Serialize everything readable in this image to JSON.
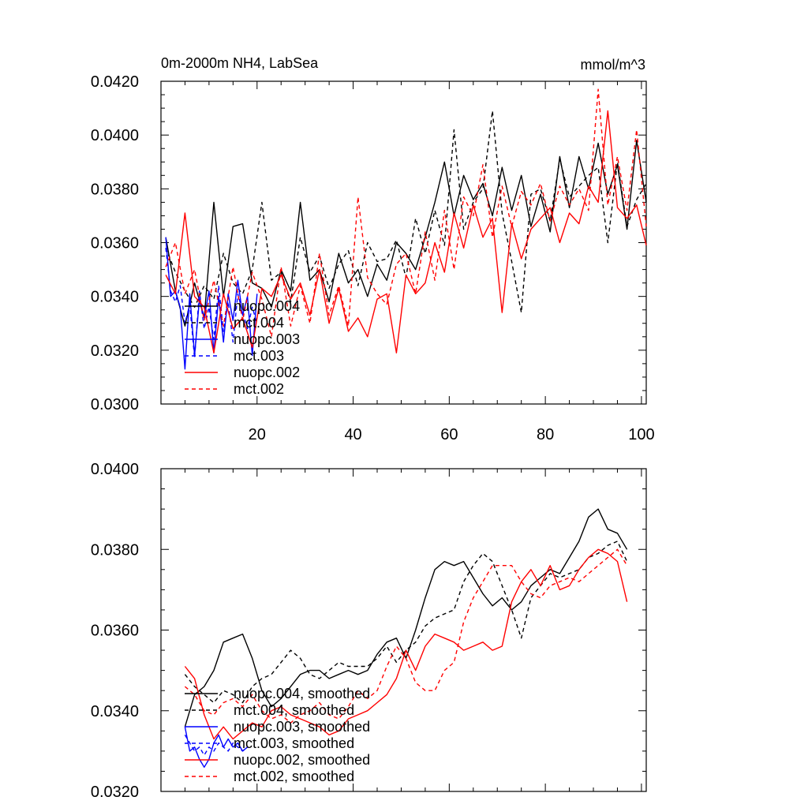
{
  "chart_data": [
    {
      "type": "line",
      "title": "0m-2000m NH4, LabSea",
      "units": "mmol/m^3",
      "xlabel": "",
      "ylabel": "",
      "xlim": [
        0,
        101
      ],
      "ylim": [
        0.03,
        0.042
      ],
      "x_ticks": [
        "20",
        "40",
        "60",
        "80",
        "100"
      ],
      "y_ticks": [
        "0.0300",
        "0.0320",
        "0.0340",
        "0.0360",
        "0.0380",
        "0.0400",
        "0.0420"
      ],
      "legend_position": "lower-left",
      "series": [
        {
          "name": "nuopc.004",
          "color": "#000000",
          "style": "solid",
          "x": [
            1,
            3,
            5,
            7,
            9,
            11,
            13,
            15,
            17,
            19,
            21,
            23,
            25,
            27,
            29,
            31,
            33,
            35,
            37,
            39,
            41,
            43,
            45,
            47,
            49,
            51,
            53,
            55,
            57,
            59,
            61,
            63,
            65,
            67,
            69,
            71,
            73,
            75,
            77,
            79,
            81,
            83,
            85,
            87,
            89,
            91,
            93,
            95,
            97,
            99,
            101
          ],
          "values": [
            0.0362,
            0.0342,
            0.0329,
            0.0345,
            0.0332,
            0.0375,
            0.034,
            0.0366,
            0.0367,
            0.0345,
            0.0343,
            0.0336,
            0.035,
            0.0342,
            0.0375,
            0.0346,
            0.035,
            0.0338,
            0.0356,
            0.0345,
            0.035,
            0.034,
            0.0352,
            0.0346,
            0.036,
            0.0356,
            0.035,
            0.0362,
            0.0375,
            0.039,
            0.037,
            0.0385,
            0.0376,
            0.0382,
            0.037,
            0.0388,
            0.0372,
            0.0385,
            0.0366,
            0.0378,
            0.0364,
            0.0392,
            0.0373,
            0.0392,
            0.038,
            0.0397,
            0.0378,
            0.0389,
            0.0365,
            0.0398,
            0.0375
          ]
        },
        {
          "name": "mct.004",
          "color": "#000000",
          "style": "dashed",
          "x": [
            1,
            3,
            5,
            7,
            9,
            11,
            13,
            15,
            17,
            19,
            21,
            23,
            25,
            27,
            29,
            31,
            33,
            35,
            37,
            39,
            41,
            43,
            45,
            47,
            49,
            51,
            53,
            55,
            57,
            59,
            61,
            63,
            65,
            67,
            69,
            71,
            73,
            75,
            77,
            79,
            81,
            83,
            85,
            87,
            89,
            91,
            93,
            95,
            97,
            99,
            101
          ],
          "values": [
            0.0358,
            0.0349,
            0.0342,
            0.0336,
            0.0344,
            0.0339,
            0.0356,
            0.0345,
            0.0341,
            0.035,
            0.0375,
            0.0346,
            0.0349,
            0.0338,
            0.0362,
            0.0349,
            0.0355,
            0.0343,
            0.0352,
            0.0357,
            0.0344,
            0.036,
            0.0353,
            0.0354,
            0.0361,
            0.0347,
            0.0369,
            0.0356,
            0.0372,
            0.0359,
            0.0402,
            0.0365,
            0.0375,
            0.038,
            0.0409,
            0.0371,
            0.0353,
            0.0334,
            0.0378,
            0.038,
            0.0368,
            0.0391,
            0.0377,
            0.0381,
            0.0385,
            0.0388,
            0.036,
            0.039,
            0.0366,
            0.0376,
            0.0382
          ]
        },
        {
          "name": "nuopc.003",
          "color": "#0000ff",
          "style": "solid",
          "x": [
            1,
            2,
            3,
            4,
            5,
            6,
            7,
            8,
            9,
            10,
            11,
            12,
            13,
            14,
            15,
            16,
            17,
            18,
            19,
            20
          ],
          "values": [
            0.0362,
            0.034,
            0.0342,
            0.0336,
            0.0313,
            0.0341,
            0.0318,
            0.0339,
            0.0332,
            0.0342,
            0.0319,
            0.034,
            0.0323,
            0.0341,
            0.0331,
            0.0346,
            0.0333,
            0.034,
            0.0318,
            0.0341
          ]
        },
        {
          "name": "mct.003",
          "color": "#0000ff",
          "style": "dashed",
          "x": [
            1,
            2,
            3,
            4,
            5,
            6,
            7,
            8,
            9,
            10,
            11,
            12,
            13,
            14,
            15,
            16,
            17,
            18,
            19,
            20
          ],
          "values": [
            0.0358,
            0.0342,
            0.0338,
            0.0344,
            0.033,
            0.0337,
            0.0317,
            0.0342,
            0.0328,
            0.0336,
            0.0324,
            0.0344,
            0.0327,
            0.0338,
            0.0323,
            0.0341,
            0.0334,
            0.0328,
            0.0336,
            0.033
          ]
        },
        {
          "name": "nuopc.002",
          "color": "#ff0000",
          "style": "solid",
          "x": [
            1,
            3,
            5,
            7,
            9,
            11,
            13,
            15,
            17,
            19,
            21,
            23,
            25,
            27,
            29,
            31,
            33,
            35,
            37,
            39,
            41,
            43,
            45,
            47,
            49,
            51,
            53,
            55,
            57,
            59,
            61,
            63,
            65,
            67,
            69,
            71,
            73,
            75,
            77,
            79,
            81,
            83,
            85,
            87,
            89,
            91,
            93,
            95,
            97,
            99,
            101
          ],
          "values": [
            0.0348,
            0.0341,
            0.0371,
            0.034,
            0.0336,
            0.0319,
            0.0341,
            0.0328,
            0.0332,
            0.0321,
            0.0343,
            0.034,
            0.0348,
            0.0339,
            0.0345,
            0.0333,
            0.035,
            0.033,
            0.0343,
            0.0327,
            0.0332,
            0.0325,
            0.0339,
            0.0341,
            0.0319,
            0.0348,
            0.0341,
            0.0345,
            0.036,
            0.0349,
            0.0371,
            0.0358,
            0.0374,
            0.0362,
            0.0369,
            0.0334,
            0.0367,
            0.0354,
            0.0365,
            0.0369,
            0.0373,
            0.036,
            0.0371,
            0.0367,
            0.0381,
            0.0375,
            0.0409,
            0.0373,
            0.0369,
            0.0374,
            0.0359
          ]
        },
        {
          "name": "mct.002",
          "color": "#ff0000",
          "style": "dashed",
          "x": [
            1,
            3,
            5,
            7,
            9,
            11,
            13,
            15,
            17,
            19,
            21,
            23,
            25,
            27,
            29,
            31,
            33,
            35,
            37,
            39,
            41,
            43,
            45,
            47,
            49,
            51,
            53,
            55,
            57,
            59,
            61,
            63,
            65,
            67,
            69,
            71,
            73,
            75,
            77,
            79,
            81,
            83,
            85,
            87,
            89,
            91,
            93,
            95,
            97,
            99,
            101
          ],
          "values": [
            0.0351,
            0.036,
            0.0341,
            0.035,
            0.0331,
            0.0346,
            0.0329,
            0.0351,
            0.0331,
            0.0349,
            0.0339,
            0.0325,
            0.0351,
            0.0329,
            0.0344,
            0.033,
            0.0356,
            0.0333,
            0.0344,
            0.0329,
            0.0377,
            0.0347,
            0.0341,
            0.0337,
            0.0352,
            0.0356,
            0.0341,
            0.0364,
            0.0346,
            0.0372,
            0.035,
            0.0377,
            0.037,
            0.0389,
            0.0362,
            0.0381,
            0.0366,
            0.0379,
            0.0374,
            0.0382,
            0.0368,
            0.0381,
            0.0374,
            0.038,
            0.0372,
            0.0417,
            0.0374,
            0.0392,
            0.0372,
            0.0402,
            0.0366
          ]
        }
      ]
    },
    {
      "type": "line",
      "title": "",
      "xlabel": "",
      "ylabel": "",
      "xlim": [
        0,
        101
      ],
      "ylim": [
        0.032,
        0.04
      ],
      "x_ticks": [],
      "y_ticks": [
        "0.0320",
        "0.0340",
        "0.0360",
        "0.0380",
        "0.0400"
      ],
      "legend_position": "lower-left",
      "series": [
        {
          "name": "nuopc.004, smoothed",
          "color": "#000000",
          "style": "solid",
          "x": [
            5,
            7,
            9,
            11,
            13,
            15,
            17,
            19,
            21,
            23,
            25,
            27,
            29,
            31,
            33,
            35,
            37,
            39,
            41,
            43,
            45,
            47,
            49,
            51,
            53,
            55,
            57,
            59,
            61,
            63,
            65,
            67,
            69,
            71,
            73,
            75,
            77,
            79,
            81,
            83,
            85,
            87,
            89,
            91,
            93,
            95,
            97
          ],
          "values": [
            0.0336,
            0.0344,
            0.0346,
            0.035,
            0.0357,
            0.0358,
            0.0359,
            0.0353,
            0.0345,
            0.0341,
            0.0343,
            0.0346,
            0.0349,
            0.035,
            0.035,
            0.0348,
            0.0349,
            0.035,
            0.0349,
            0.035,
            0.0354,
            0.0357,
            0.0358,
            0.0353,
            0.036,
            0.0368,
            0.0375,
            0.0377,
            0.0376,
            0.0377,
            0.0373,
            0.0369,
            0.0366,
            0.0368,
            0.0365,
            0.0367,
            0.0371,
            0.0373,
            0.0375,
            0.0374,
            0.0378,
            0.0382,
            0.0388,
            0.039,
            0.0385,
            0.0384,
            0.038
          ]
        },
        {
          "name": "mct.004, smoothed",
          "color": "#000000",
          "style": "dashed",
          "x": [
            5,
            7,
            9,
            11,
            13,
            15,
            17,
            19,
            21,
            23,
            25,
            27,
            29,
            31,
            33,
            35,
            37,
            39,
            41,
            43,
            45,
            47,
            49,
            51,
            53,
            55,
            57,
            59,
            61,
            63,
            65,
            67,
            69,
            71,
            73,
            75,
            77,
            79,
            81,
            83,
            85,
            87,
            89,
            91,
            93,
            95,
            97
          ],
          "values": [
            0.0349,
            0.0346,
            0.0344,
            0.0342,
            0.0345,
            0.0344,
            0.0342,
            0.0346,
            0.0348,
            0.0349,
            0.0352,
            0.0355,
            0.0353,
            0.0349,
            0.0348,
            0.035,
            0.0352,
            0.0351,
            0.0351,
            0.0351,
            0.0353,
            0.0356,
            0.0352,
            0.0355,
            0.0357,
            0.0361,
            0.0363,
            0.0364,
            0.0365,
            0.0372,
            0.0376,
            0.0379,
            0.0377,
            0.0371,
            0.0365,
            0.0358,
            0.0368,
            0.0371,
            0.0374,
            0.0373,
            0.0374,
            0.0375,
            0.0378,
            0.0379,
            0.0381,
            0.0382,
            0.0377
          ]
        },
        {
          "name": "nuopc.003, smoothed",
          "color": "#0000ff",
          "style": "solid",
          "x": [
            5,
            6,
            7,
            8,
            9,
            10,
            11,
            12,
            13,
            14,
            15,
            16,
            17,
            18
          ],
          "values": [
            0.0336,
            0.033,
            0.0331,
            0.0328,
            0.0326,
            0.0328,
            0.0332,
            0.0334,
            0.0331,
            0.0333,
            0.0331,
            0.0332,
            0.033,
            0.0331
          ]
        },
        {
          "name": "mct.003, smoothed",
          "color": "#0000ff",
          "style": "dashed",
          "x": [
            5,
            6,
            7,
            8,
            9,
            10,
            11,
            12,
            13,
            14,
            15,
            16,
            17,
            18
          ],
          "values": [
            0.0334,
            0.0332,
            0.033,
            0.0331,
            0.0329,
            0.0331,
            0.033,
            0.0332,
            0.0331,
            0.033,
            0.0332,
            0.0331,
            0.033,
            0.0331
          ]
        },
        {
          "name": "nuopc.002, smoothed",
          "color": "#ff0000",
          "style": "solid",
          "x": [
            5,
            7,
            9,
            11,
            13,
            15,
            17,
            19,
            21,
            23,
            25,
            27,
            29,
            31,
            33,
            35,
            37,
            39,
            41,
            43,
            45,
            47,
            49,
            51,
            53,
            55,
            57,
            59,
            61,
            63,
            65,
            67,
            69,
            71,
            73,
            75,
            77,
            79,
            81,
            83,
            85,
            87,
            89,
            91,
            93,
            95,
            97
          ],
          "values": [
            0.0351,
            0.0348,
            0.0339,
            0.0333,
            0.0336,
            0.0333,
            0.0335,
            0.0337,
            0.0336,
            0.034,
            0.0341,
            0.0339,
            0.0338,
            0.0337,
            0.0336,
            0.0334,
            0.0335,
            0.0338,
            0.0339,
            0.034,
            0.0342,
            0.0344,
            0.0348,
            0.0355,
            0.035,
            0.0356,
            0.0359,
            0.0358,
            0.0357,
            0.0355,
            0.0356,
            0.0357,
            0.0355,
            0.0356,
            0.0367,
            0.0372,
            0.0375,
            0.0371,
            0.0376,
            0.037,
            0.0371,
            0.0375,
            0.0378,
            0.038,
            0.0379,
            0.0377,
            0.0367
          ]
        },
        {
          "name": "mct.002, smoothed",
          "color": "#ff0000",
          "style": "dashed",
          "x": [
            5,
            7,
            9,
            11,
            13,
            15,
            17,
            19,
            21,
            23,
            25,
            27,
            29,
            31,
            33,
            35,
            37,
            39,
            41,
            43,
            45,
            47,
            49,
            51,
            53,
            55,
            57,
            59,
            61,
            63,
            65,
            67,
            69,
            71,
            73,
            75,
            77,
            79,
            81,
            83,
            85,
            87,
            89,
            91,
            93,
            95,
            97
          ],
          "values": [
            0.0346,
            0.0344,
            0.034,
            0.0339,
            0.0342,
            0.0343,
            0.0341,
            0.0344,
            0.034,
            0.0338,
            0.0339,
            0.0337,
            0.0339,
            0.034,
            0.0342,
            0.0339,
            0.0338,
            0.0341,
            0.0345,
            0.0343,
            0.0345,
            0.0351,
            0.0356,
            0.0353,
            0.0347,
            0.0345,
            0.0345,
            0.035,
            0.0352,
            0.0362,
            0.0368,
            0.0372,
            0.0376,
            0.0376,
            0.0376,
            0.0372,
            0.0369,
            0.0368,
            0.0371,
            0.0372,
            0.0373,
            0.0372,
            0.0374,
            0.0376,
            0.0378,
            0.038,
            0.0376
          ]
        }
      ]
    }
  ]
}
